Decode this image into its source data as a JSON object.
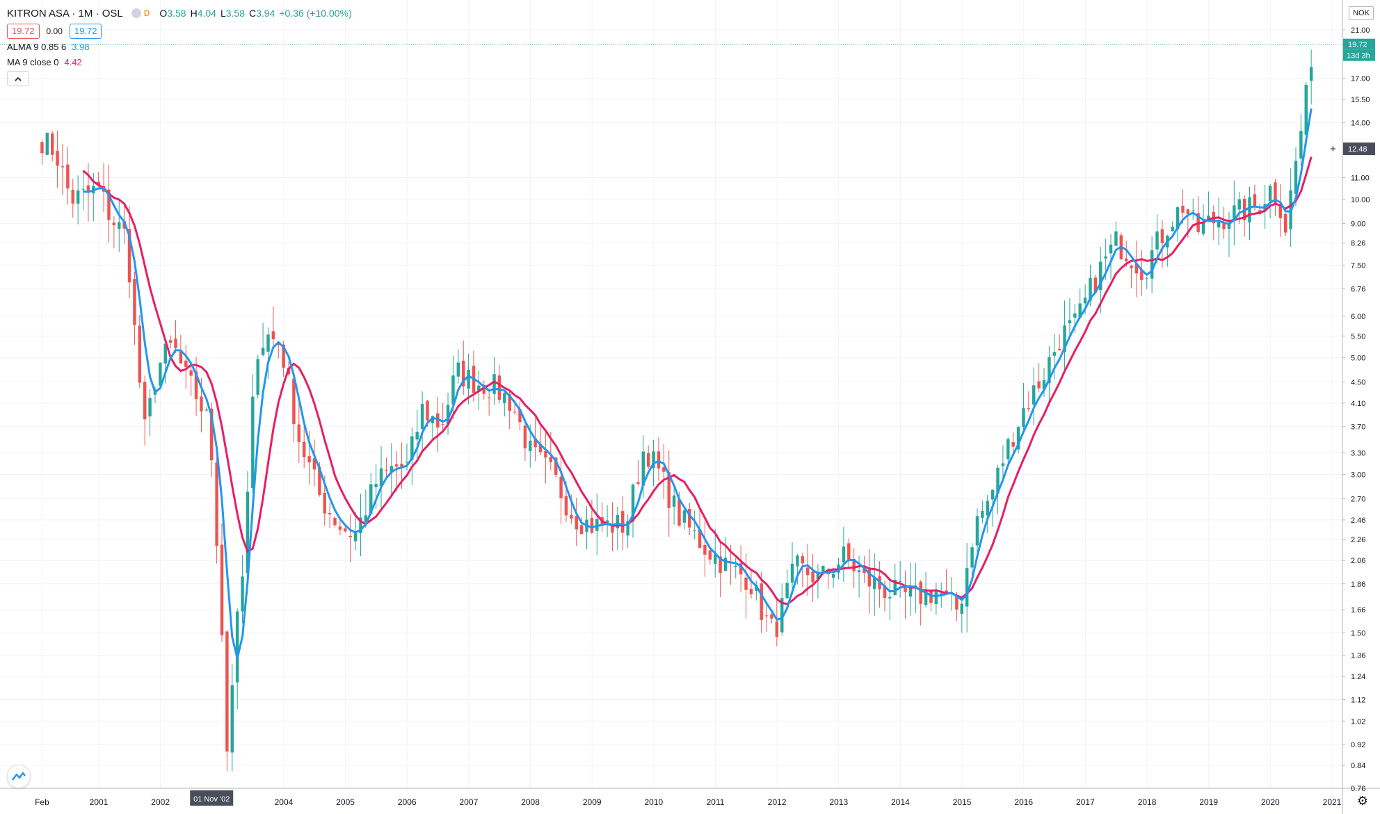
{
  "header": {
    "symbol": "KITRON ASA",
    "interval": "1M",
    "exchange": "OSL",
    "interval_badge": "D",
    "o_label": "O",
    "o_value": "3.58",
    "h_label": "H",
    "h_value": "4.04",
    "l_label": "L",
    "l_value": "3.58",
    "c_label": "C",
    "c_value": "3.94",
    "change": "+0.36 (+10.00%)",
    "bid": "19.72",
    "spread": "0.00",
    "ask": "19.72"
  },
  "indicators": [
    {
      "name": "ALMA 9 0.85 6",
      "value": "3.98"
    },
    {
      "name": "MA 9 close 0",
      "value": "4.42"
    }
  ],
  "price_axis": {
    "currency": "NOK",
    "last_price_label": "19.72",
    "countdown_label": "13d 3h",
    "crosshair_price_label": "12.48"
  },
  "time_axis": {
    "crosshair_date_label": "01 Nov '02"
  },
  "chart_data": {
    "type": "candlestick",
    "title": "KITRON ASA · 1M · OSL",
    "y_scale": "log",
    "ylim": [
      0.72,
      24.0
    ],
    "y_ticks": [
      "0.76",
      "0.84",
      "0.92",
      "1.02",
      "1.12",
      "1.24",
      "1.36",
      "1.50",
      "1.66",
      "1.86",
      "2.06",
      "2.26",
      "2.46",
      "2.70",
      "3.00",
      "3.30",
      "3.70",
      "4.10",
      "4.50",
      "5.00",
      "5.50",
      "6.00",
      "6.76",
      "7.50",
      "8.26",
      "9.00",
      "10.00",
      "11.00",
      "14.00",
      "15.50",
      "17.00",
      "21.00"
    ],
    "x_ticks": [
      {
        "label": "Feb",
        "year": 2000.08
      },
      {
        "label": "2001",
        "year": 2001
      },
      {
        "label": "2002",
        "year": 2002
      },
      {
        "label": "2004",
        "year": 2004
      },
      {
        "label": "2005",
        "year": 2005
      },
      {
        "label": "2006",
        "year": 2006
      },
      {
        "label": "2007",
        "year": 2007
      },
      {
        "label": "2008",
        "year": 2008
      },
      {
        "label": "2009",
        "year": 2009
      },
      {
        "label": "2010",
        "year": 2010
      },
      {
        "label": "2011",
        "year": 2011
      },
      {
        "label": "2012",
        "year": 2012
      },
      {
        "label": "2013",
        "year": 2013
      },
      {
        "label": "2014",
        "year": 2014
      },
      {
        "label": "2015",
        "year": 2015
      },
      {
        "label": "2016",
        "year": 2016
      },
      {
        "label": "2017",
        "year": 2017
      },
      {
        "label": "2018",
        "year": 2018
      },
      {
        "label": "2019",
        "year": 2019
      },
      {
        "label": "2020",
        "year": 2020
      },
      {
        "label": "2021",
        "year": 2021
      }
    ],
    "close_anchors": [
      [
        2000.08,
        13.0
      ],
      [
        2000.3,
        12.3
      ],
      [
        2000.55,
        10.0
      ],
      [
        2000.8,
        10.2
      ],
      [
        2001.0,
        10.5
      ],
      [
        2001.2,
        9.2
      ],
      [
        2001.45,
        8.5
      ],
      [
        2001.6,
        5.3
      ],
      [
        2001.75,
        3.6
      ],
      [
        2001.95,
        4.8
      ],
      [
        2002.2,
        5.3
      ],
      [
        2002.4,
        4.6
      ],
      [
        2002.6,
        4.2
      ],
      [
        2002.8,
        3.7
      ],
      [
        2002.97,
        1.8
      ],
      [
        2003.08,
        0.9
      ],
      [
        2003.2,
        1.4
      ],
      [
        2003.35,
        2.0
      ],
      [
        2003.55,
        5.2
      ],
      [
        2003.75,
        5.5
      ],
      [
        2003.95,
        5.3
      ],
      [
        2004.25,
        3.5
      ],
      [
        2004.6,
        2.7
      ],
      [
        2004.9,
        2.4
      ],
      [
        2005.15,
        2.3
      ],
      [
        2005.5,
        2.9
      ],
      [
        2005.8,
        3.1
      ],
      [
        2006.0,
        3.1
      ],
      [
        2006.25,
        4.0
      ],
      [
        2006.55,
        3.7
      ],
      [
        2006.8,
        4.7
      ],
      [
        2007.1,
        4.5
      ],
      [
        2007.4,
        4.4
      ],
      [
        2007.7,
        4.1
      ],
      [
        2008.0,
        3.3
      ],
      [
        2008.35,
        3.0
      ],
      [
        2008.7,
        2.5
      ],
      [
        2009.0,
        2.4
      ],
      [
        2009.3,
        2.4
      ],
      [
        2009.55,
        2.4
      ],
      [
        2009.85,
        3.4
      ],
      [
        2010.1,
        3.0
      ],
      [
        2010.4,
        2.5
      ],
      [
        2010.8,
        2.2
      ],
      [
        2011.2,
        2.0
      ],
      [
        2011.55,
        1.9
      ],
      [
        2011.8,
        1.6
      ],
      [
        2011.95,
        1.5
      ],
      [
        2012.3,
        2.0
      ],
      [
        2012.7,
        1.9
      ],
      [
        2013.1,
        2.1
      ],
      [
        2013.4,
        1.9
      ],
      [
        2013.8,
        1.8
      ],
      [
        2014.2,
        1.75
      ],
      [
        2014.6,
        1.8
      ],
      [
        2014.95,
        1.65
      ],
      [
        2015.2,
        2.4
      ],
      [
        2015.45,
        2.7
      ],
      [
        2015.7,
        3.3
      ],
      [
        2016.0,
        4.0
      ],
      [
        2016.3,
        4.6
      ],
      [
        2016.6,
        5.5
      ],
      [
        2016.85,
        5.8
      ],
      [
        2017.1,
        6.8
      ],
      [
        2017.3,
        7.6
      ],
      [
        2017.5,
        8.3
      ],
      [
        2017.7,
        7.9
      ],
      [
        2017.95,
        7.3
      ],
      [
        2018.1,
        8.0
      ],
      [
        2018.35,
        9.0
      ],
      [
        2018.6,
        9.8
      ],
      [
        2018.8,
        8.7
      ],
      [
        2019.05,
        9.1
      ],
      [
        2019.3,
        9.3
      ],
      [
        2019.55,
        9.5
      ],
      [
        2019.8,
        9.7
      ],
      [
        2020.0,
        10.5
      ],
      [
        2020.15,
        10.0
      ],
      [
        2020.22,
        8.5
      ],
      [
        2020.4,
        11.5
      ],
      [
        2020.55,
        14.8
      ],
      [
        2020.65,
        17.5
      ],
      [
        2020.73,
        19.72
      ]
    ],
    "series": [
      {
        "name": "ALMA 9 0.85 6",
        "color": "#2196f3"
      },
      {
        "name": "MA 9 close 0",
        "color": "#e91e63"
      }
    ],
    "colors": {
      "up": "#26a69a",
      "down": "#ef5350"
    },
    "last_price": 19.72,
    "crosshair_price": 12.48,
    "grid": true
  }
}
